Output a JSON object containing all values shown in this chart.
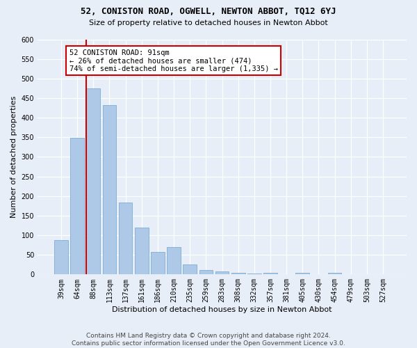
{
  "title": "52, CONISTON ROAD, OGWELL, NEWTON ABBOT, TQ12 6YJ",
  "subtitle": "Size of property relative to detached houses in Newton Abbot",
  "xlabel": "Distribution of detached houses by size in Newton Abbot",
  "ylabel": "Number of detached properties",
  "categories": [
    "39sqm",
    "64sqm",
    "88sqm",
    "113sqm",
    "137sqm",
    "161sqm",
    "186sqm",
    "210sqm",
    "235sqm",
    "259sqm",
    "283sqm",
    "308sqm",
    "332sqm",
    "357sqm",
    "381sqm",
    "405sqm",
    "430sqm",
    "454sqm",
    "479sqm",
    "503sqm",
    "527sqm"
  ],
  "values": [
    88,
    348,
    474,
    432,
    183,
    120,
    58,
    70,
    25,
    12,
    8,
    5,
    3,
    5,
    0,
    5,
    0,
    5,
    0,
    0,
    0
  ],
  "bar_color": "#aec9e8",
  "bar_edgecolor": "#7aadd4",
  "ylim": [
    0,
    600
  ],
  "yticks": [
    0,
    50,
    100,
    150,
    200,
    250,
    300,
    350,
    400,
    450,
    500,
    550,
    600
  ],
  "annotation_title": "52 CONISTON ROAD: 91sqm",
  "annotation_line1": "← 26% of detached houses are smaller (474)",
  "annotation_line2": "74% of semi-detached houses are larger (1,335) →",
  "vline_color": "#cc0000",
  "annotation_box_facecolor": "#ffffff",
  "annotation_box_edgecolor": "#cc0000",
  "footer1": "Contains HM Land Registry data © Crown copyright and database right 2024.",
  "footer2": "Contains public sector information licensed under the Open Government Licence v3.0.",
  "fig_facecolor": "#e8eef7",
  "plot_facecolor": "#e8eef7",
  "grid_color": "#ffffff",
  "title_fontsize": 9,
  "subtitle_fontsize": 8,
  "ylabel_fontsize": 8,
  "xlabel_fontsize": 8,
  "tick_fontsize": 7,
  "footer_fontsize": 6.5
}
